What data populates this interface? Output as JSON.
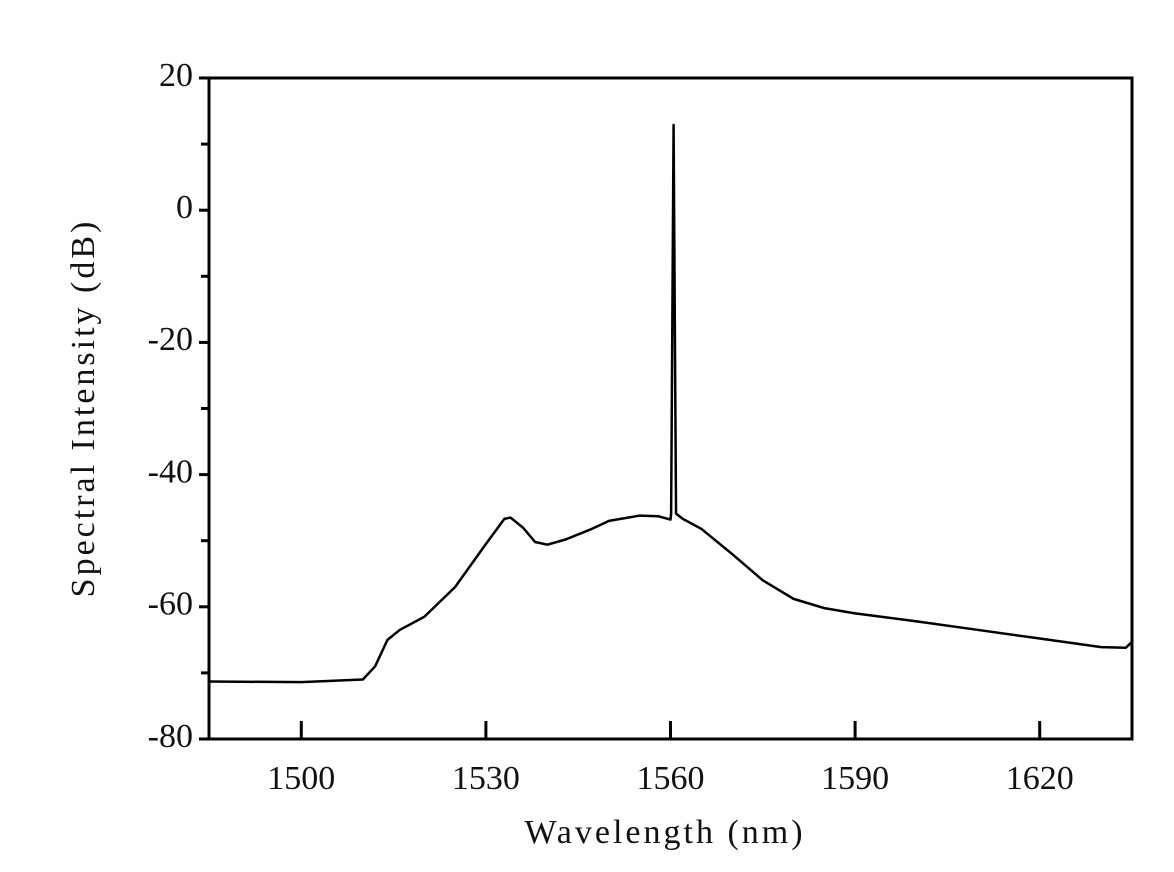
{
  "chart_data": {
    "type": "line",
    "x_label": "Wavelength (nm)",
    "y_label": "Spectral Intensity (dB)",
    "x": [
      1485,
      1500,
      1510,
      1512,
      1514,
      1516,
      1520,
      1525,
      1530,
      1533,
      1534,
      1536,
      1538,
      1540,
      1543,
      1547,
      1550,
      1555,
      1558,
      1560,
      1560.1,
      1560.5,
      1560.9,
      1562,
      1565,
      1570,
      1575,
      1580,
      1585,
      1590,
      1600,
      1610,
      1620,
      1630,
      1634,
      1635
    ],
    "series": [
      {
        "color": "#000000",
        "values": [
          -71.3,
          -71.4,
          -71,
          -69,
          -65,
          -63.5,
          -61.5,
          -57,
          -50.5,
          -46.7,
          -46.5,
          -48,
          -50.2,
          -50.6,
          -49.8,
          -48.3,
          -47,
          -46.2,
          -46.3,
          -46.8,
          -45.9,
          12.9,
          -45.9,
          -46.7,
          -48.2,
          -52,
          -56,
          -58.8,
          -60.2,
          -61,
          -62.2,
          -63.5,
          -64.8,
          -66.1,
          -66.2,
          -65.3
        ]
      }
    ],
    "xlim": [
      1485,
      1635
    ],
    "xticks": [
      1500,
      1530,
      1560,
      1590,
      1620
    ],
    "ylim": [
      -80,
      20
    ],
    "yticks": [
      -80,
      -60,
      -40,
      -20,
      0,
      20
    ],
    "yminorticks": [
      -70,
      -50,
      -30,
      -10,
      10
    ]
  }
}
